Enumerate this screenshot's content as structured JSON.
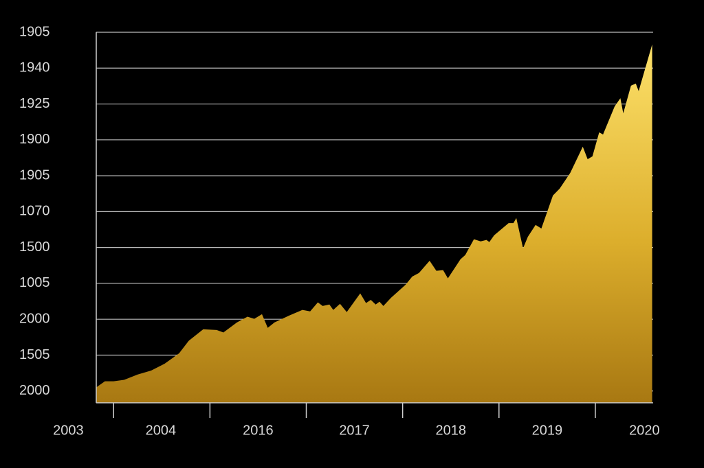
{
  "chart_data": {
    "type": "area",
    "color": "#e8c13a",
    "grid": true,
    "xlim": [
      0,
      5.78
    ],
    "ylim": [
      -0.33,
      10
    ],
    "yticks": [
      {
        "value": 0,
        "label": "2000"
      },
      {
        "value": 1,
        "label": "1505"
      },
      {
        "value": 2,
        "label": "2000"
      },
      {
        "value": 3,
        "label": "1005"
      },
      {
        "value": 4,
        "label": "1500"
      },
      {
        "value": 5,
        "label": "1070"
      },
      {
        "value": 6,
        "label": "1905"
      },
      {
        "value": 7,
        "label": "1900"
      },
      {
        "value": 8,
        "label": "1925"
      },
      {
        "value": 9,
        "label": "1940"
      },
      {
        "value": 10,
        "label": "1905"
      }
    ],
    "xtick_marks": [
      0.18,
      1.18,
      2.18,
      3.18,
      4.18,
      5.18
    ],
    "xlabels": [
      {
        "value": -0.29,
        "label": "2003"
      },
      {
        "value": 0.67,
        "label": "2004"
      },
      {
        "value": 1.68,
        "label": "2016"
      },
      {
        "value": 2.68,
        "label": "2017"
      },
      {
        "value": 3.68,
        "label": "2018"
      },
      {
        "value": 4.68,
        "label": "2019"
      },
      {
        "value": 5.69,
        "label": "2020"
      }
    ],
    "x": [
      0,
      0.09,
      0.18,
      0.29,
      0.43,
      0.57,
      0.71,
      0.86,
      0.96,
      1.11,
      1.25,
      1.32,
      1.46,
      1.57,
      1.64,
      1.72,
      1.78,
      1.85,
      2.0,
      2.14,
      2.22,
      2.3,
      2.35,
      2.42,
      2.46,
      2.53,
      2.6,
      2.74,
      2.8,
      2.85,
      2.9,
      2.94,
      2.98,
      3.06,
      3.21,
      3.28,
      3.35,
      3.46,
      3.53,
      3.6,
      3.65,
      3.78,
      3.83,
      3.92,
      3.99,
      4.05,
      4.08,
      4.13,
      4.28,
      4.33,
      4.36,
      4.43,
      4.48,
      4.56,
      4.62,
      4.74,
      4.81,
      4.92,
      5.05,
      5.1,
      5.15,
      5.22,
      5.26,
      5.38,
      5.44,
      5.47,
      5.55,
      5.6,
      5.63,
      5.77
    ],
    "values": [
      0.1,
      0.27,
      0.27,
      0.31,
      0.46,
      0.57,
      0.76,
      1.05,
      1.4,
      1.72,
      1.7,
      1.63,
      1.91,
      2.07,
      2.01,
      2.14,
      1.76,
      1.91,
      2.1,
      2.26,
      2.22,
      2.47,
      2.37,
      2.41,
      2.26,
      2.43,
      2.2,
      2.72,
      2.45,
      2.54,
      2.41,
      2.49,
      2.37,
      2.6,
      2.96,
      3.19,
      3.29,
      3.63,
      3.35,
      3.37,
      3.14,
      3.67,
      3.79,
      4.23,
      4.17,
      4.21,
      4.15,
      4.34,
      4.68,
      4.68,
      4.82,
      3.98,
      4.3,
      4.63,
      4.53,
      5.45,
      5.64,
      6.08,
      6.81,
      6.46,
      6.54,
      7.21,
      7.15,
      7.93,
      8.16,
      7.74,
      8.51,
      8.57,
      8.36,
      9.66
    ]
  }
}
